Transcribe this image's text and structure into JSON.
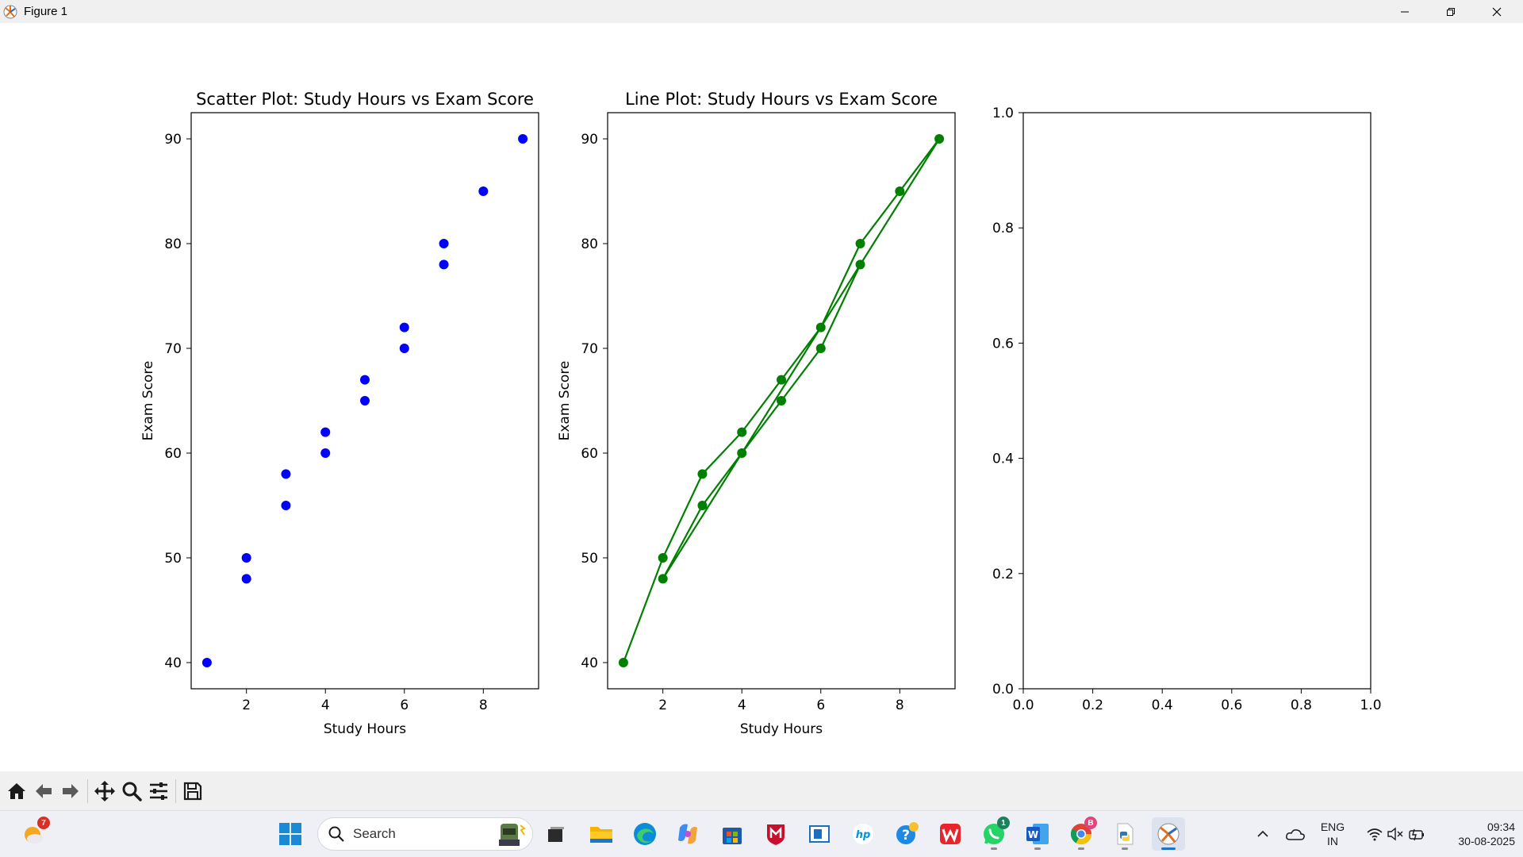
{
  "window": {
    "title": "Figure 1",
    "controls": [
      "minimize",
      "restore",
      "close"
    ]
  },
  "chart_data": [
    {
      "type": "scatter",
      "title": "Scatter Plot: Study Hours vs Exam Score",
      "xlabel": "Study Hours",
      "ylabel": "Exam Score",
      "xlim": [
        0.6,
        9.4
      ],
      "ylim": [
        37.5,
        92.5
      ],
      "xticks": [
        2,
        4,
        6,
        8
      ],
      "yticks": [
        40,
        50,
        60,
        70,
        80,
        90
      ],
      "grid": false,
      "color": "#0000ff",
      "x": [
        1,
        2,
        2,
        3,
        3,
        4,
        4,
        5,
        5,
        6,
        6,
        7,
        7,
        8,
        9
      ],
      "y": [
        40,
        50,
        48,
        58,
        55,
        62,
        60,
        67,
        65,
        72,
        70,
        80,
        78,
        85,
        90
      ]
    },
    {
      "type": "line",
      "title": "Line Plot: Study Hours vs Exam Score",
      "xlabel": "Study Hours",
      "ylabel": "Exam Score",
      "xlim": [
        0.6,
        9.4
      ],
      "ylim": [
        37.5,
        92.5
      ],
      "xticks": [
        2,
        4,
        6,
        8
      ],
      "yticks": [
        40,
        50,
        60,
        70,
        80,
        90
      ],
      "grid": false,
      "color": "#008000",
      "markers": true,
      "x": [
        1,
        2,
        3,
        4,
        5,
        6,
        7,
        8,
        9,
        2,
        3,
        4,
        5,
        6,
        7
      ],
      "y": [
        40,
        50,
        58,
        62,
        67,
        72,
        80,
        85,
        90,
        48,
        55,
        60,
        65,
        70,
        78
      ]
    },
    {
      "type": "scatter",
      "title": "",
      "xlabel": "",
      "ylabel": "",
      "xlim": [
        0.0,
        1.0
      ],
      "ylim": [
        0.0,
        1.0
      ],
      "xticks": [
        0.0,
        0.2,
        0.4,
        0.6,
        0.8,
        1.0
      ],
      "yticks": [
        0.0,
        0.2,
        0.4,
        0.6,
        0.8,
        1.0
      ],
      "tick_labels": [
        "0.0",
        "0.2",
        "0.4",
        "0.6",
        "0.8",
        "1.0"
      ],
      "grid": false,
      "x": [],
      "y": []
    }
  ],
  "toolbar": {
    "tools": [
      "home-icon",
      "back-icon",
      "forward-icon",
      "pan-icon",
      "zoom-icon",
      "configure-subplots-icon",
      "save-icon"
    ]
  },
  "taskbar": {
    "search_placeholder": "Search",
    "weather_badge": "7",
    "whatsapp_badge": "1",
    "chrome_badge": "B",
    "language": "ENG",
    "region": "IN",
    "time": "09:34",
    "date": "30-08-2025"
  }
}
